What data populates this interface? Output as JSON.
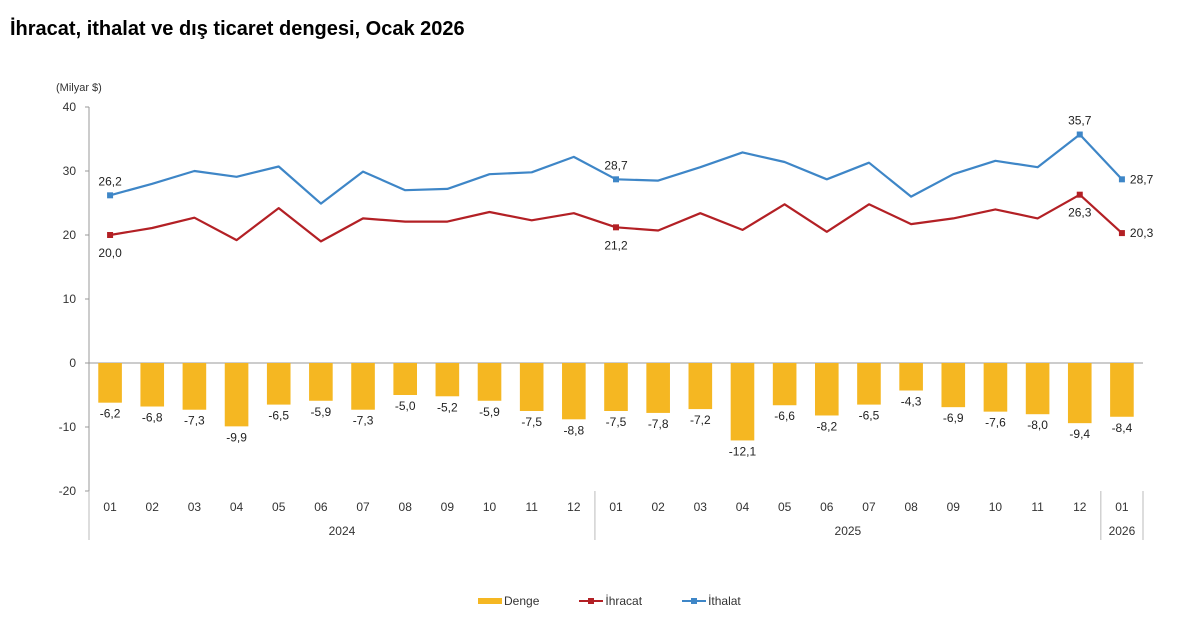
{
  "title": "İhracat, ithalat ve dış ticaret dengesi, Ocak 2026",
  "colors": {
    "denge": "#F5B722",
    "ihracat": "#B32025",
    "ithalat": "#3E86C7",
    "axis": "#999999"
  },
  "chart_data": {
    "type": "bar+line",
    "unit_label": "(Milyar $)",
    "ylim": [
      -20,
      40
    ],
    "yticks": [
      -20,
      -10,
      0,
      10,
      20,
      30,
      40
    ],
    "categories": [
      "01",
      "02",
      "03",
      "04",
      "05",
      "06",
      "07",
      "08",
      "09",
      "10",
      "11",
      "12",
      "01",
      "02",
      "03",
      "04",
      "05",
      "06",
      "07",
      "08",
      "09",
      "10",
      "11",
      "12",
      "01"
    ],
    "year_groups": [
      {
        "label": "2024",
        "count": 12
      },
      {
        "label": "2025",
        "count": 12
      },
      {
        "label": "2026",
        "count": 1
      }
    ],
    "series": [
      {
        "name": "Denge",
        "kind": "bar",
        "values": [
          -6.2,
          -6.8,
          -7.3,
          -9.9,
          -6.5,
          -5.9,
          -7.3,
          -5.0,
          -5.2,
          -5.9,
          -7.5,
          -8.8,
          -7.5,
          -7.8,
          -7.2,
          -12.1,
          -6.6,
          -8.2,
          -6.5,
          -4.3,
          -6.9,
          -7.6,
          -8.0,
          -9.4,
          -8.4
        ],
        "labels": [
          "-6,2",
          "-6,8",
          "-7,3",
          "-9,9",
          "-6,5",
          "-5,9",
          "-7,3",
          "-5,0",
          "-5,2",
          "-5,9",
          "-7,5",
          "-8,8",
          "-7,5",
          "-7,8",
          "-7,2",
          "-12,1",
          "-6,6",
          "-8,2",
          "-6,5",
          "-4,3",
          "-6,9",
          "-7,6",
          "-8,0",
          "-9,4",
          "-8,4"
        ]
      },
      {
        "name": "İhracat",
        "kind": "line",
        "values": [
          20.0,
          21.1,
          22.7,
          19.2,
          24.2,
          19.0,
          22.6,
          22.1,
          22.1,
          23.6,
          22.3,
          23.4,
          21.2,
          20.7,
          23.4,
          20.8,
          24.8,
          20.5,
          24.8,
          21.7,
          22.6,
          24.0,
          22.6,
          26.3,
          20.3
        ],
        "markers": [
          0,
          12,
          23,
          24
        ],
        "point_labels": [
          {
            "index": 0,
            "text": "20,0",
            "pos": "below"
          },
          {
            "index": 12,
            "text": "21,2",
            "pos": "below"
          },
          {
            "index": 23,
            "text": "26,3",
            "pos": "below"
          },
          {
            "index": 24,
            "text": "20,3",
            "pos": "right"
          }
        ]
      },
      {
        "name": "İthalat",
        "kind": "line",
        "values": [
          26.2,
          28.0,
          30.0,
          29.1,
          30.7,
          24.9,
          29.9,
          27.0,
          27.2,
          29.5,
          29.8,
          32.2,
          28.7,
          28.5,
          30.6,
          32.9,
          31.4,
          28.7,
          31.3,
          26.0,
          29.5,
          31.6,
          30.6,
          35.7,
          28.7
        ],
        "markers": [
          0,
          12,
          23,
          24
        ],
        "point_labels": [
          {
            "index": 0,
            "text": "26,2",
            "pos": "above"
          },
          {
            "index": 12,
            "text": "28,7",
            "pos": "above"
          },
          {
            "index": 23,
            "text": "35,7",
            "pos": "above"
          },
          {
            "index": 24,
            "text": "28,7",
            "pos": "right"
          }
        ]
      }
    ],
    "legend": {
      "position": "bottom",
      "entries": [
        "Denge",
        "İhracat",
        "İthalat"
      ]
    },
    "grid": false
  }
}
